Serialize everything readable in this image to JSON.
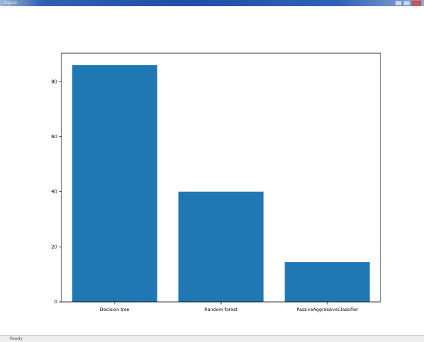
{
  "window": {
    "title": "Figure",
    "status": "Ready"
  },
  "colors": {
    "bar": "#1f77b4",
    "axis": "#000000",
    "titlebar": "#1f4fa6"
  },
  "chart_data": {
    "type": "bar",
    "categories": [
      "Decision tree",
      "Random forest",
      "PassiveAggressiveClassifier"
    ],
    "values": [
      86,
      40,
      14.5
    ],
    "title": "",
    "xlabel": "",
    "ylabel": "",
    "ylim": [
      0,
      90.3
    ],
    "yticks": [
      0,
      20,
      40,
      60,
      80
    ],
    "grid": false
  }
}
